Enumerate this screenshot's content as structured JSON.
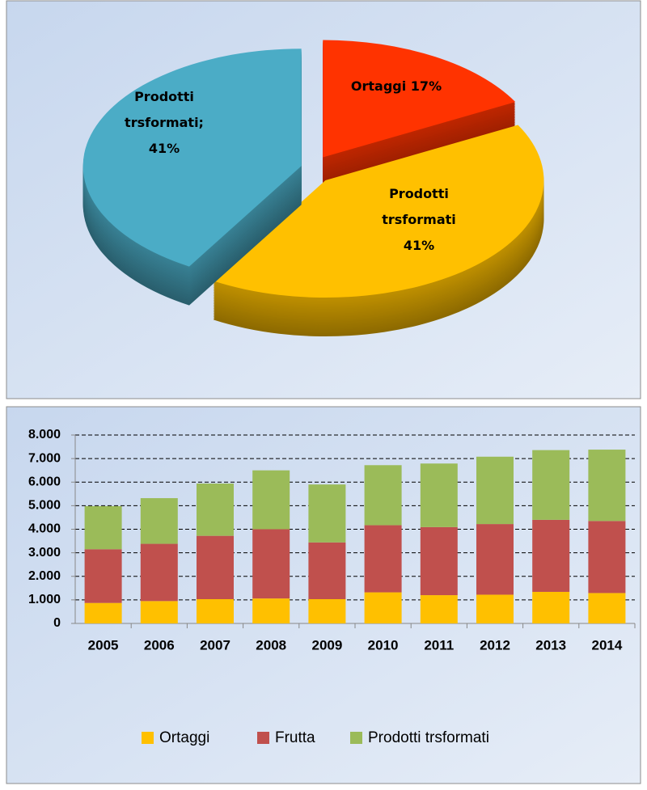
{
  "chart_data": [
    {
      "type": "pie",
      "values": [
        17,
        41,
        41
      ],
      "value_labels": [
        "Ortaggi 17%",
        "Prodotti\ntrsformati\n41%",
        "Prodotti\ntrsformati;\n41%"
      ],
      "colors": [
        "#ff3300",
        "#ffc000",
        "#4bacc6"
      ]
    },
    {
      "type": "bar",
      "stacked": true,
      "categories": [
        "2005",
        "2006",
        "2007",
        "2008",
        "2009",
        "2010",
        "2011",
        "2012",
        "2013",
        "2014"
      ],
      "series": [
        {
          "name": "Ortaggi",
          "color": "#ffc000",
          "values": [
            870,
            950,
            1030,
            1060,
            1030,
            1320,
            1200,
            1220,
            1340,
            1290
          ]
        },
        {
          "name": "Frutta",
          "color": "#c0504d",
          "values": [
            2280,
            2430,
            2690,
            2940,
            2410,
            2850,
            2890,
            3000,
            3060,
            3060
          ]
        },
        {
          "name": "Prodotti trsformati",
          "color": "#9bbb59",
          "values": [
            1830,
            1940,
            2220,
            2500,
            2460,
            2550,
            2700,
            2860,
            2960,
            3030
          ]
        }
      ],
      "ylim": [
        0,
        8000
      ],
      "yticks": [
        0,
        {
          "value": 1000,
          "label": "1.000"
        },
        {
          "value": 2000,
          "label": "2.000"
        },
        {
          "value": 3000,
          "label": "3.000"
        },
        {
          "value": 4000,
          "label": "4.000"
        },
        {
          "value": 5000,
          "label": "5.000"
        },
        {
          "value": 6000,
          "label": "6.000"
        },
        {
          "value": 7000,
          "label": "7.000"
        },
        {
          "value": 8000,
          "label": "8.000"
        }
      ],
      "grid": true,
      "legend": "bottom"
    }
  ]
}
